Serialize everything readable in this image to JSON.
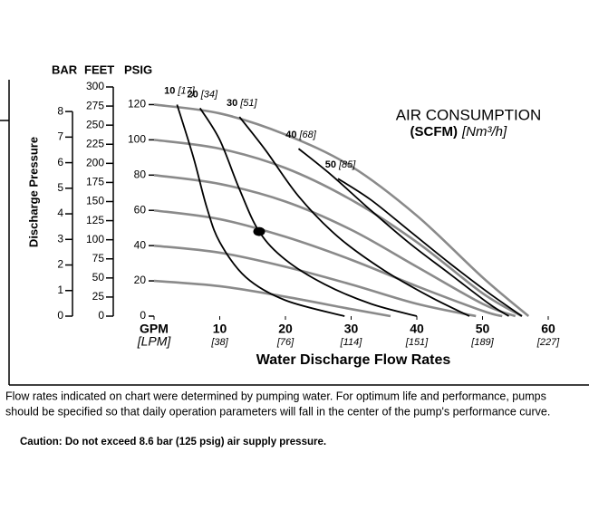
{
  "chart_data": {
    "type": "line",
    "header_labels": [
      "BAR",
      "FEET",
      "PSIG"
    ],
    "ylabel": "Discharge Pressure",
    "xlabel": "Water Discharge Flow Rates",
    "legend_title": "AIR CONSUMPTION",
    "legend_unit": "(SCFM)",
    "legend_unit_metric": "[Nm³/h]",
    "xlim": [
      0,
      60
    ],
    "xticks": [
      {
        "value": 0,
        "label": "GPM"
      },
      10,
      20,
      30,
      40,
      50,
      60
    ],
    "xticks_metric": [
      "[LPM]",
      "[38]",
      "[76]",
      "[114]",
      "[151]",
      "[189]",
      "[227]"
    ],
    "ylim": [
      0,
      130
    ],
    "yticks": [
      0,
      20,
      40,
      60,
      80,
      100,
      120
    ],
    "feet_lim": [
      0,
      300
    ],
    "feet_ticks": [
      0,
      25,
      50,
      75,
      100,
      125,
      150,
      175,
      200,
      225,
      250,
      275,
      300
    ],
    "bar_lim": [
      0,
      8.96
    ],
    "bar_ticks": [
      0,
      1,
      2,
      3,
      4,
      5,
      6,
      7,
      8
    ],
    "head_curves": [
      {
        "color": "#8a8a8a",
        "x": [
          0,
          10,
          20,
          30,
          40,
          50,
          57
        ],
        "values": [
          120,
          115,
          103,
          85,
          57,
          22,
          0
        ]
      },
      {
        "color": "#8a8a8a",
        "x": [
          0,
          10,
          20,
          30,
          40,
          50,
          56
        ],
        "values": [
          100,
          95,
          84,
          66,
          42,
          13,
          0
        ]
      },
      {
        "color": "#8a8a8a",
        "x": [
          0,
          10,
          20,
          30,
          40,
          50,
          55
        ],
        "values": [
          80,
          75,
          65,
          49,
          28,
          7,
          0
        ]
      },
      {
        "color": "#8a8a8a",
        "x": [
          0,
          10,
          20,
          30,
          40,
          50,
          53
        ],
        "values": [
          60,
          55,
          45,
          32,
          17,
          3,
          0
        ]
      },
      {
        "color": "#8a8a8a",
        "x": [
          0,
          10,
          20,
          30,
          40,
          49
        ],
        "values": [
          40,
          36,
          28,
          18,
          7,
          0
        ]
      },
      {
        "color": "#8a8a8a",
        "x": [
          0,
          10,
          20,
          30,
          36
        ],
        "values": [
          20,
          17,
          11,
          4,
          0
        ]
      }
    ],
    "air_curves": [
      {
        "name": "10",
        "name_metric": "[17]",
        "color": "#000000",
        "x": [
          3.5,
          6,
          8,
          10,
          14,
          20,
          29
        ],
        "values": [
          120,
          90,
          62,
          42,
          22,
          9,
          0
        ]
      },
      {
        "name": "20",
        "name_metric": "[34]",
        "color": "#000000",
        "x": [
          7,
          10,
          13,
          16,
          20,
          26,
          33,
          40
        ],
        "values": [
          118,
          100,
          72,
          48,
          32,
          18,
          7,
          0
        ]
      },
      {
        "name": "30",
        "name_metric": "[51]",
        "color": "#000000",
        "x": [
          13,
          17,
          22,
          28,
          35,
          42,
          48
        ],
        "values": [
          113,
          94,
          68,
          45,
          26,
          11,
          0
        ]
      },
      {
        "name": "40",
        "name_metric": "[68]",
        "color": "#000000",
        "x": [
          22,
          27,
          33,
          39,
          45,
          51,
          54
        ],
        "values": [
          95,
          80,
          60,
          41,
          24,
          7,
          0
        ]
      },
      {
        "name": "50",
        "name_metric": "[85]",
        "color": "#000000",
        "x": [
          28,
          33,
          39,
          45,
          51,
          56
        ],
        "values": [
          78,
          66,
          48,
          30,
          13,
          0
        ]
      }
    ],
    "marker": {
      "x": 16,
      "y": 48
    },
    "notes": [
      "Flow rates indicated on chart were determined by pumping water. For optimum life and performance, pumps",
      "should be specified so that daily operation parameters will fall in the center of the pump's performance curve."
    ],
    "caution": "Caution: Do not exceed 8.6 bar (125 psig) air supply pressure."
  }
}
